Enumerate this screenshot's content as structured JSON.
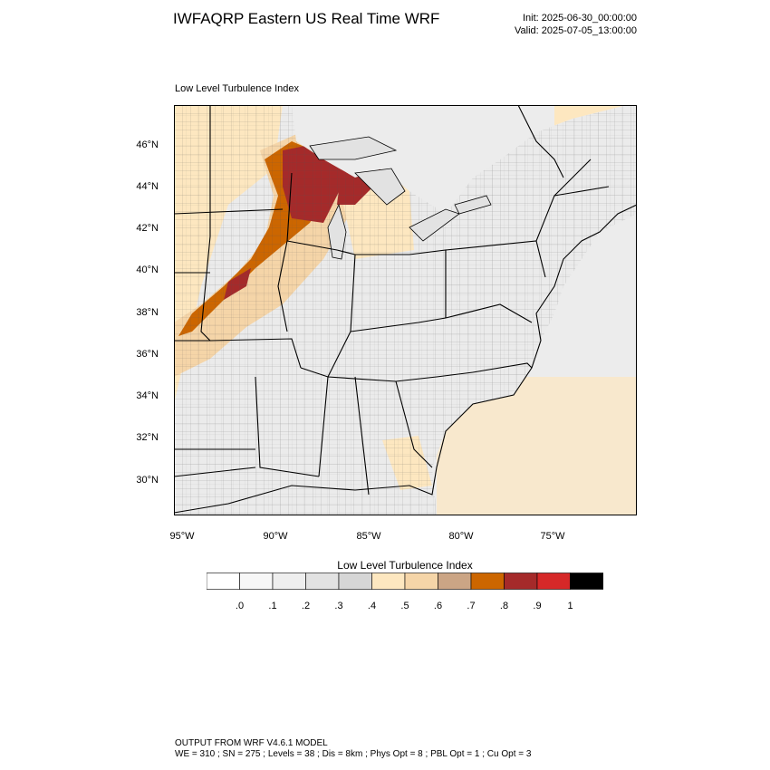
{
  "title": "IWFAQRP Eastern US Real Time WRF",
  "init": "Init: 2025-06-30_00:00:00",
  "valid": "Valid: 2025-07-05_13:00:00",
  "subtitle": "Low Level Turbulence Index",
  "lat_labels": [
    "46°N",
    "44°N",
    "42°N",
    "40°N",
    "38°N",
    "36°N",
    "34°N",
    "32°N",
    "30°N"
  ],
  "lon_labels": [
    "95°W",
    "90°W",
    "85°W",
    "80°W",
    "75°W"
  ],
  "colorbar": {
    "title": "Low Level Turbulence Index",
    "labels": [
      ".0",
      ".1",
      ".2",
      ".3",
      ".4",
      ".5",
      ".6",
      ".7",
      ".8",
      ".9",
      "1"
    ],
    "colors": [
      "#ffffff",
      "#f7f7f7",
      "#eeeeee",
      "#e2e2e2",
      "#d6d6d6",
      "#fde7c0",
      "#f5d5a8",
      "#cba585",
      "#cc6600",
      "#a52a2a",
      "#d62828",
      "#000000"
    ]
  },
  "footer": {
    "line1": "OUTPUT FROM WRF V4.6.1 MODEL",
    "line2": "WE = 310 ; SN = 275 ; Levels = 38 ; Dis = 8km ; Phys Opt = 8 ; PBL Opt = 1 ; Cu Opt = 3"
  }
}
